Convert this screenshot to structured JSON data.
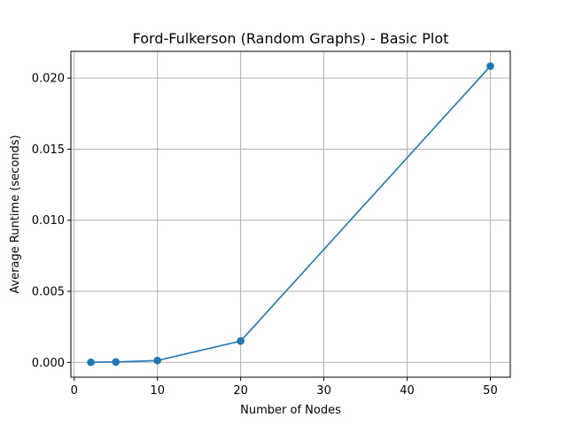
{
  "chart_data": {
    "type": "line",
    "title": "Ford-Fulkerson (Random Graphs) - Basic Plot",
    "xlabel": "Number of Nodes",
    "ylabel": "Average Runtime (seconds)",
    "xlim": [
      -0.4,
      52.4
    ],
    "ylim": [
      -0.00104,
      0.02188
    ],
    "xticks": [
      0,
      10,
      20,
      30,
      40,
      50
    ],
    "xtick_labels": [
      "0",
      "10",
      "20",
      "30",
      "40",
      "50"
    ],
    "yticks": [
      0.0,
      0.005,
      0.01,
      0.015,
      0.02
    ],
    "ytick_labels": [
      "0.000",
      "0.005",
      "0.010",
      "0.015",
      "0.020"
    ],
    "grid": true,
    "series": [
      {
        "color": "#1f77b4",
        "marker": "circle",
        "x": [
          2,
          5,
          10,
          20,
          50
        ],
        "y": [
          1e-05,
          3e-05,
          0.00013,
          0.0015,
          0.02084
        ]
      }
    ]
  }
}
